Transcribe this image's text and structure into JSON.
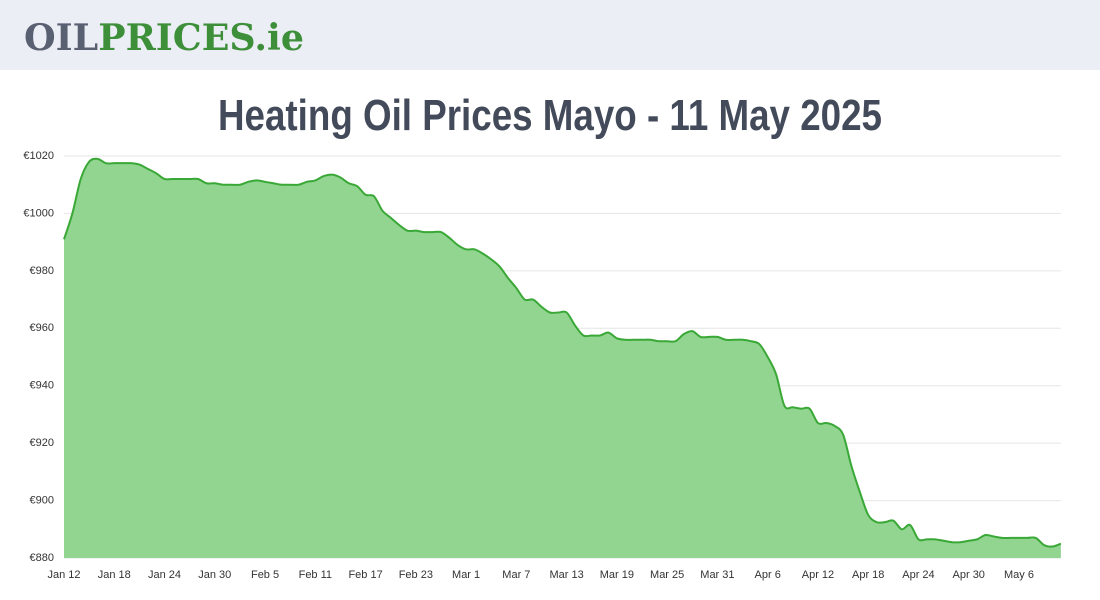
{
  "header": {
    "logo": [
      "OIL",
      "PRICES",
      ".ie"
    ]
  },
  "chart_data": {
    "type": "area",
    "title": "Heating Oil Prices Mayo - 11 May 2025",
    "categories": [
      "Jan 12",
      null,
      null,
      null,
      null,
      null,
      "Jan 18",
      null,
      null,
      null,
      null,
      null,
      "Jan 24",
      null,
      null,
      null,
      null,
      null,
      "Jan 30",
      null,
      null,
      null,
      null,
      null,
      "Feb 5",
      null,
      null,
      null,
      null,
      null,
      "Feb 11",
      null,
      null,
      null,
      null,
      null,
      "Feb 17",
      null,
      null,
      null,
      null,
      null,
      "Feb 23",
      null,
      null,
      null,
      null,
      null,
      "Mar 1",
      null,
      null,
      null,
      null,
      null,
      "Mar 7",
      null,
      null,
      null,
      null,
      null,
      "Mar 13",
      null,
      null,
      null,
      null,
      null,
      "Mar 19",
      null,
      null,
      null,
      null,
      null,
      "Mar 25",
      null,
      null,
      null,
      null,
      null,
      "Mar 31",
      null,
      null,
      null,
      null,
      null,
      "Apr 6",
      null,
      null,
      null,
      null,
      null,
      "Apr 12",
      null,
      null,
      null,
      null,
      null,
      "Apr 18",
      null,
      null,
      null,
      null,
      null,
      "Apr 24",
      null,
      null,
      null,
      null,
      null,
      "Apr 30",
      null,
      null,
      null,
      null,
      null,
      "May 6",
      null,
      null,
      null,
      null,
      null
    ],
    "values": [
      991,
      1000,
      1012,
      1018,
      1019,
      1017.5,
      1017.5,
      1017.5,
      1017.5,
      1017,
      1015.5,
      1014,
      1012,
      1012,
      1012,
      1012,
      1012,
      1010.5,
      1010.5,
      1010,
      1010,
      1010,
      1011,
      1011.5,
      1011,
      1010.5,
      1010,
      1010,
      1010,
      1011,
      1011.5,
      1013,
      1013.5,
      1012.5,
      1010.5,
      1009.5,
      1006.5,
      1006,
      1001,
      998.5,
      996,
      994,
      994,
      993.5,
      993.5,
      993.5,
      991.5,
      989,
      987.5,
      987.5,
      986,
      984,
      981.5,
      977.5,
      974,
      970,
      970,
      967.5,
      965.5,
      965.5,
      965.5,
      961,
      957.5,
      957.5,
      957.5,
      958.5,
      956.5,
      956,
      956,
      956,
      956,
      955.5,
      955.5,
      955.5,
      958,
      959,
      957,
      957,
      957,
      956,
      956,
      956,
      955.5,
      954.5,
      950,
      944,
      933,
      932.5,
      932,
      932,
      927,
      927,
      926,
      923,
      912,
      903,
      895,
      892.5,
      892.5,
      893,
      890,
      891.5,
      886.5,
      886.5,
      886.5,
      886,
      885.5,
      885.5,
      886,
      886.5,
      888,
      887.5,
      887,
      887,
      887,
      887,
      887,
      884.5,
      884,
      885
    ],
    "color": "#3aa836",
    "fill": "#91d591",
    "ylim": [
      880,
      1020
    ],
    "yticks": [
      {
        "value": 880,
        "label": "€880"
      },
      {
        "value": 900,
        "label": "€900"
      },
      {
        "value": 920,
        "label": "€920"
      },
      {
        "value": 940,
        "label": "€940"
      },
      {
        "value": 960,
        "label": "€960"
      },
      {
        "value": 980,
        "label": "€980"
      },
      {
        "value": 1000,
        "label": "€1000"
      },
      {
        "value": 1020,
        "label": "€1020"
      }
    ],
    "grid": true
  }
}
